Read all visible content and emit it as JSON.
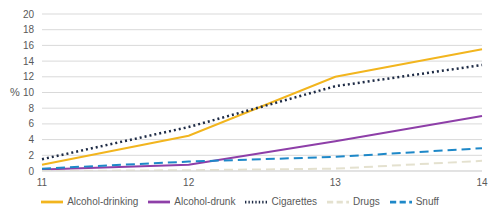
{
  "chart_data": {
    "type": "line",
    "y_label": "%",
    "categories": [
      "11",
      "12",
      "13",
      "14"
    ],
    "series": [
      {
        "name": "Alcohol-drinking",
        "color": "#f2b51e",
        "line_style": "solid",
        "values": [
          0.8,
          4.5,
          12,
          15.5
        ]
      },
      {
        "name": "Alcohol-drunk",
        "color": "#8e3fa8",
        "line_style": "solid",
        "values": [
          0.2,
          0.8,
          3.8,
          7
        ]
      },
      {
        "name": "Cigarettes",
        "color": "#1e2b45",
        "line_style": "dotted",
        "values": [
          1.5,
          5.6,
          10.8,
          13.5
        ]
      },
      {
        "name": "Drugs",
        "color": "#e4e1cf",
        "line_style": "dashed",
        "values": [
          0,
          0.1,
          0.3,
          1.3
        ]
      },
      {
        "name": "Snuff",
        "color": "#1e88c8",
        "line_style": "dashed",
        "values": [
          0.3,
          1.2,
          1.8,
          2.9
        ]
      }
    ],
    "ylim": [
      0,
      20
    ],
    "yticks": [
      0,
      2,
      4,
      6,
      8,
      10,
      12,
      14,
      16,
      18,
      20
    ],
    "grid": true,
    "legend": "bottom"
  }
}
